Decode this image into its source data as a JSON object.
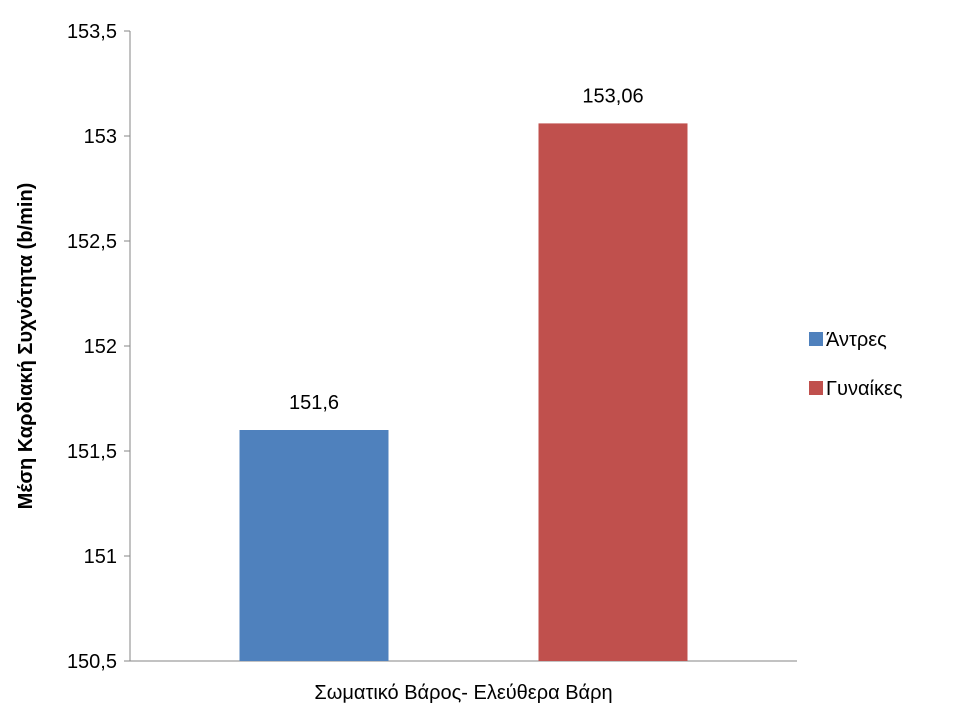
{
  "chart_data": {
    "type": "bar",
    "categories": [
      "Σωματικό Βάρος- Ελεύθερα Βάρη"
    ],
    "series": [
      {
        "name": "Άντρες",
        "values": [
          151.6
        ],
        "color": "#4F81BD",
        "label": "151,6"
      },
      {
        "name": "Γυναίκες",
        "values": [
          153.06
        ],
        "color": "#C0504D",
        "label": "153,06"
      }
    ],
    "title": "",
    "xlabel": "",
    "ylabel": "Μέση Καρδιακή Συχνότητα (b/min)",
    "ylim": [
      150.5,
      153.5
    ],
    "yticks": [
      150.5,
      151,
      151.5,
      152,
      152.5,
      153,
      153.5
    ],
    "ytick_labels": [
      "150,5",
      "151",
      "151,5",
      "152",
      "152,5",
      "153",
      "153,5"
    ],
    "grid": false,
    "legend_position": "right"
  }
}
